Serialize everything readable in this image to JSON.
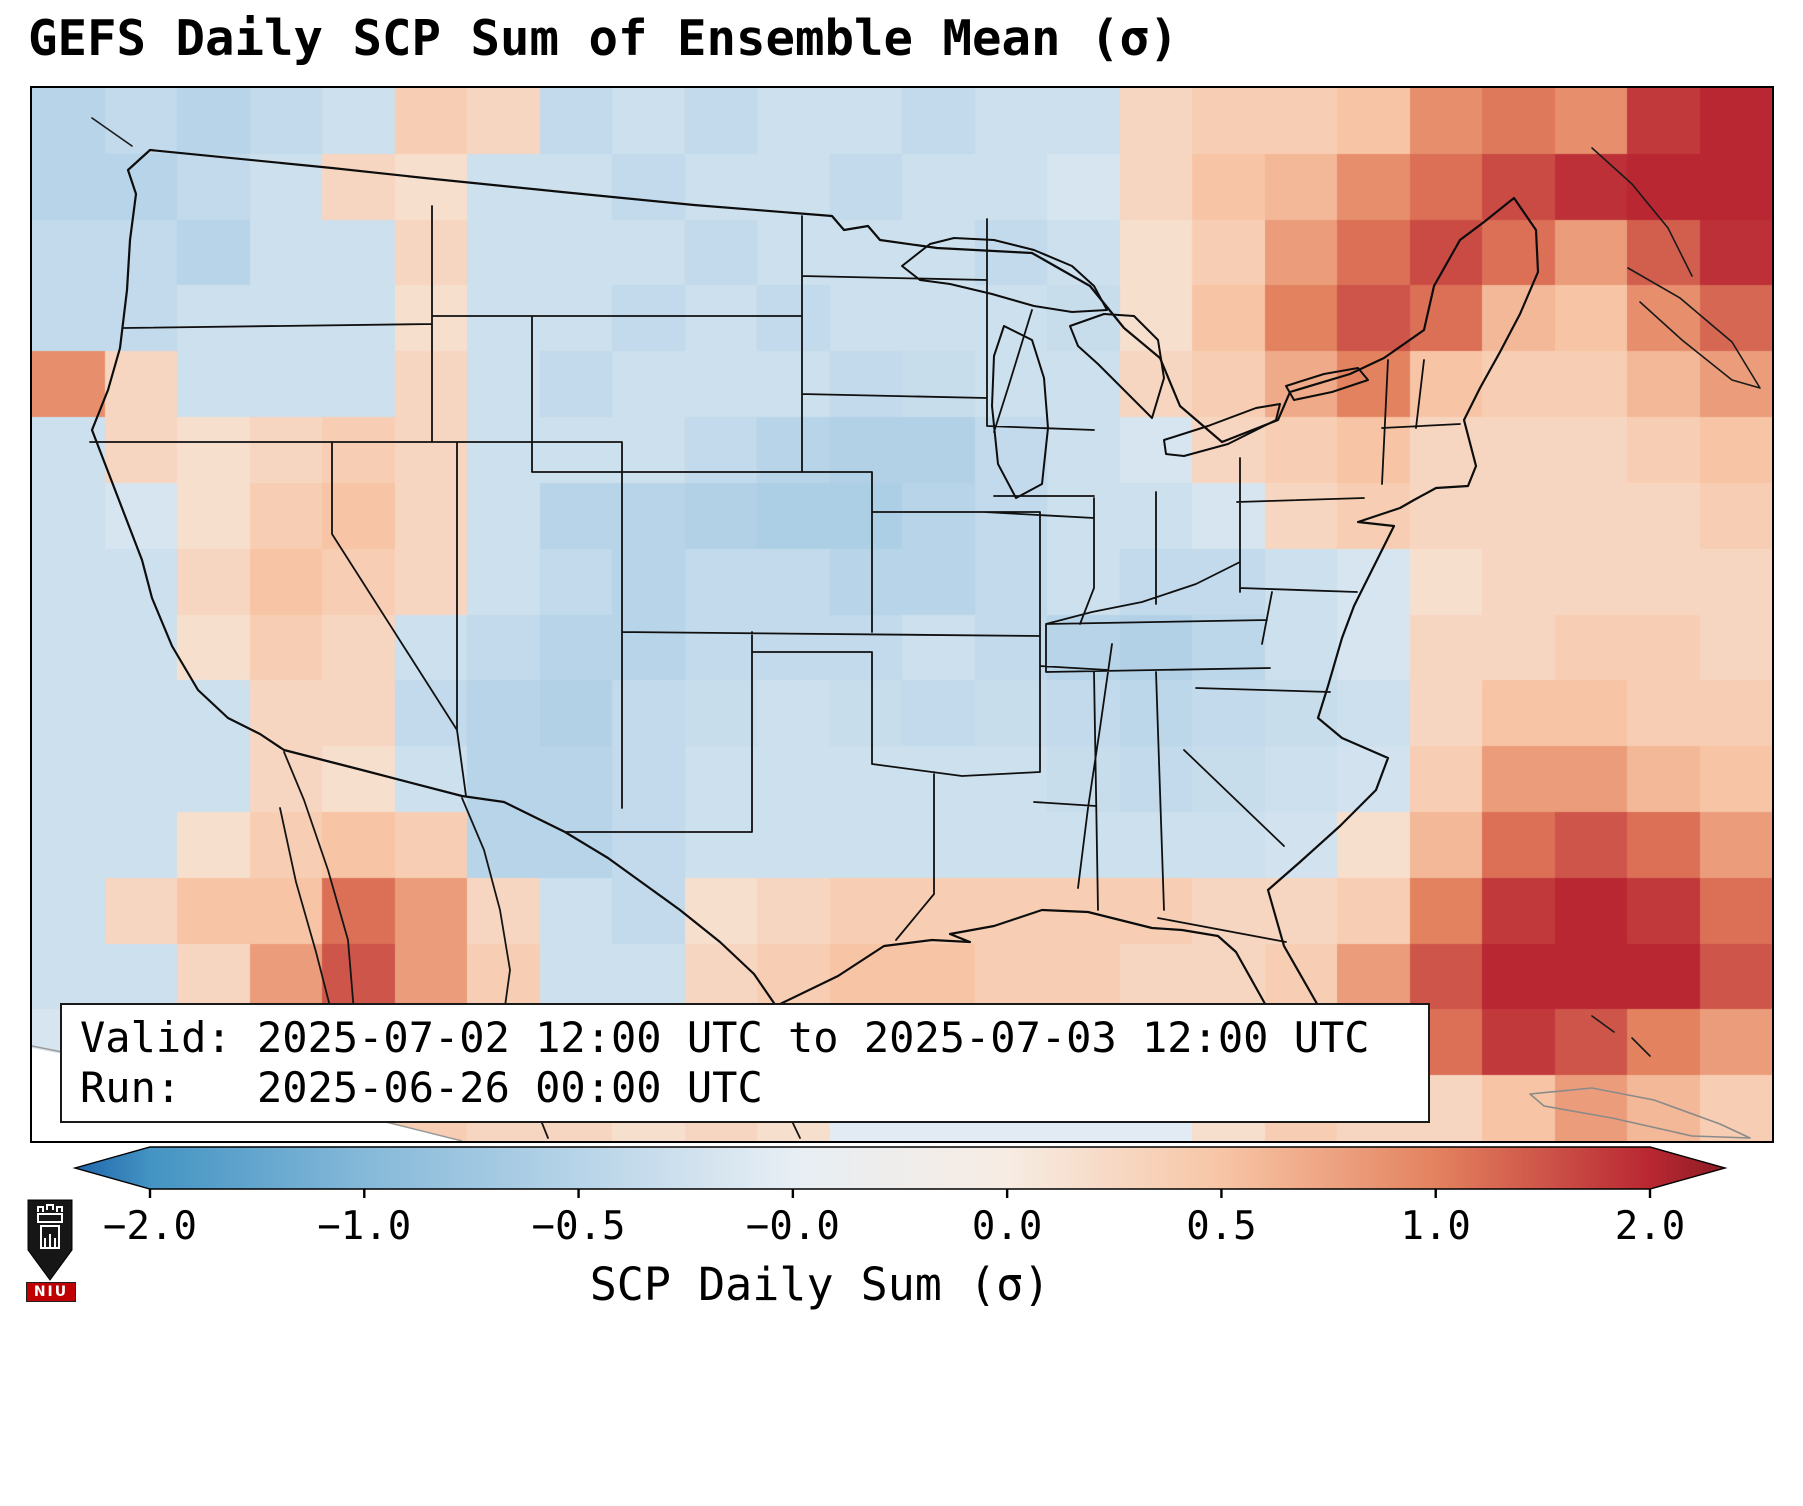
{
  "title": "GEFS Daily SCP Sum of Ensemble Mean (σ)",
  "info_box": {
    "valid_line": "Valid: 2025-07-02 12:00 UTC to 2025-07-03 12:00 UTC",
    "run_line": "Run:   2025-06-26 00:00 UTC"
  },
  "colorbar": {
    "label": "SCP Daily Sum (σ)",
    "ticks": [
      "−2.0",
      "−1.0",
      "−0.5",
      "−0.0",
      "0.0",
      "0.5",
      "1.0",
      "2.0"
    ],
    "left_tip_color": "#2166ac",
    "right_tip_color": "#8c1c23",
    "gradient": [
      {
        "p": 0.0,
        "c": "#2166ac"
      },
      {
        "p": 0.0455,
        "c": "#4393c3"
      },
      {
        "p": 0.1753,
        "c": "#85b9d9"
      },
      {
        "p": 0.3052,
        "c": "#b7d4e8"
      },
      {
        "p": 0.4351,
        "c": "#e7eef4"
      },
      {
        "p": 0.5649,
        "c": "#f7ece3"
      },
      {
        "p": 0.6948,
        "c": "#f7c5a5"
      },
      {
        "p": 0.8247,
        "c": "#e3825f"
      },
      {
        "p": 0.9545,
        "c": "#b92732"
      },
      {
        "p": 1.0,
        "c": "#8c1c23"
      }
    ]
  },
  "logo": {
    "text": "NIU"
  },
  "chart_data": {
    "type": "heatmap",
    "title": "GEFS Daily SCP Sum of Ensemble Mean (σ)",
    "colorbar_label": "SCP Daily Sum (σ)",
    "value_range": [
      -2,
      2
    ],
    "tick_labels": [
      "-2.0",
      "-1.0",
      "-0.5",
      "-0.0",
      "0.0",
      "0.5",
      "1.0",
      "2.0"
    ],
    "valid": "2025-07-02 12:00 UTC to 2025-07-03 12:00 UTC",
    "run": "2025-06-26 00:00 UTC",
    "region": "Continental United States with southern Canada, northern Mexico, Gulf of Mexico and western Atlantic",
    "legend_position": "bottom",
    "colormap": {
      "name": "RdBu_r (diverging blue-white-red, boundary ticks -2,-1,-0.5,-0,0,0.5,1,2)",
      "stops": [
        [
          -2.0,
          "#4393c3"
        ],
        [
          -1.0,
          "#85b9d9"
        ],
        [
          -0.5,
          "#b7d4e8"
        ],
        [
          -0.05,
          "#e7eef4"
        ],
        [
          0.05,
          "#f7ece3"
        ],
        [
          0.5,
          "#f7c5a5"
        ],
        [
          1.0,
          "#e3825f"
        ],
        [
          2.0,
          "#b92732"
        ]
      ]
    },
    "grid": {
      "cols": 24,
      "rows": 16,
      "orientation": "values[row][col]; row 0 = north edge of map, col 0 = west edge",
      "units": "sigma",
      "values": [
        [
          -0.5,
          -0.4,
          -0.5,
          -0.4,
          -0.3,
          0.4,
          0.3,
          -0.4,
          -0.3,
          -0.4,
          -0.3,
          -0.3,
          -0.4,
          -0.3,
          -0.3,
          0.3,
          0.4,
          0.4,
          0.5,
          0.9,
          1.1,
          0.9,
          1.8,
          2.0
        ],
        [
          -0.5,
          -0.5,
          -0.4,
          -0.3,
          0.3,
          0.2,
          -0.3,
          -0.3,
          -0.4,
          -0.3,
          -0.3,
          -0.4,
          -0.3,
          -0.3,
          -0.2,
          0.3,
          0.5,
          0.6,
          0.9,
          1.2,
          1.6,
          1.9,
          2.0,
          2.0
        ],
        [
          -0.4,
          -0.4,
          -0.5,
          -0.3,
          -0.3,
          0.3,
          -0.3,
          -0.3,
          -0.3,
          -0.4,
          -0.3,
          -0.3,
          -0.3,
          -0.4,
          -0.3,
          0.2,
          0.4,
          0.8,
          1.2,
          1.6,
          1.2,
          0.8,
          1.4,
          1.9
        ],
        [
          -0.4,
          -0.4,
          -0.3,
          -0.3,
          -0.3,
          0.2,
          -0.3,
          -0.3,
          -0.4,
          -0.3,
          -0.4,
          -0.3,
          -0.3,
          -0.3,
          -0.35,
          0.2,
          0.5,
          1.0,
          1.5,
          1.2,
          0.6,
          0.5,
          0.9,
          1.3
        ],
        [
          0.9,
          0.3,
          -0.3,
          -0.3,
          -0.3,
          0.3,
          -0.3,
          -0.4,
          -0.3,
          -0.3,
          -0.3,
          -0.4,
          -0.35,
          -0.3,
          -0.3,
          0.3,
          0.4,
          0.7,
          1.0,
          0.5,
          0.4,
          0.4,
          0.6,
          0.8
        ],
        [
          -0.3,
          0.3,
          0.2,
          0.3,
          0.4,
          0.3,
          -0.3,
          -0.3,
          -0.3,
          -0.4,
          -0.5,
          -0.55,
          -0.55,
          -0.4,
          -0.3,
          -0.2,
          0.3,
          0.4,
          0.5,
          0.3,
          0.3,
          0.3,
          0.4,
          0.5
        ],
        [
          -0.3,
          -0.2,
          0.2,
          0.4,
          0.5,
          0.3,
          -0.3,
          -0.5,
          -0.5,
          -0.55,
          -0.6,
          -0.6,
          -0.5,
          -0.4,
          -0.3,
          -0.3,
          -0.2,
          0.3,
          0.4,
          0.3,
          0.3,
          0.3,
          0.3,
          0.4
        ],
        [
          -0.3,
          -0.3,
          0.3,
          0.5,
          0.4,
          0.3,
          -0.3,
          -0.4,
          -0.5,
          -0.4,
          -0.4,
          -0.5,
          -0.5,
          -0.4,
          -0.3,
          -0.4,
          -0.4,
          -0.3,
          -0.2,
          0.2,
          0.3,
          0.3,
          0.3,
          0.3
        ],
        [
          -0.3,
          -0.3,
          0.2,
          0.4,
          0.3,
          -0.3,
          -0.4,
          -0.5,
          -0.5,
          -0.4,
          -0.4,
          -0.4,
          -0.3,
          -0.4,
          -0.5,
          -0.55,
          -0.45,
          -0.3,
          -0.2,
          0.3,
          0.3,
          0.4,
          0.4,
          0.3
        ],
        [
          -0.3,
          -0.3,
          -0.3,
          0.3,
          0.3,
          -0.4,
          -0.5,
          -0.55,
          -0.4,
          -0.35,
          -0.3,
          -0.35,
          -0.4,
          -0.35,
          -0.4,
          -0.45,
          -0.4,
          -0.35,
          -0.3,
          0.3,
          0.5,
          0.5,
          0.4,
          0.4
        ],
        [
          -0.3,
          -0.3,
          -0.3,
          0.3,
          0.2,
          -0.3,
          -0.5,
          -0.5,
          -0.4,
          -0.3,
          -0.3,
          -0.3,
          -0.3,
          -0.3,
          -0.35,
          -0.4,
          -0.35,
          -0.3,
          -0.25,
          0.4,
          0.8,
          0.8,
          0.6,
          0.5
        ],
        [
          -0.3,
          -0.3,
          0.2,
          0.4,
          0.5,
          0.4,
          -0.5,
          -0.5,
          -0.4,
          -0.3,
          -0.3,
          -0.3,
          -0.3,
          -0.3,
          -0.3,
          -0.3,
          -0.3,
          -0.25,
          0.2,
          0.6,
          1.2,
          1.5,
          1.2,
          0.8
        ],
        [
          -0.3,
          0.3,
          0.5,
          0.5,
          1.2,
          0.8,
          0.3,
          -0.3,
          -0.4,
          0.2,
          0.3,
          0.4,
          0.4,
          0.4,
          0.4,
          0.4,
          0.3,
          0.3,
          0.4,
          1.0,
          1.8,
          2.0,
          1.8,
          1.2
        ],
        [
          -0.3,
          -0.3,
          0.3,
          0.8,
          1.5,
          0.8,
          0.4,
          -0.3,
          -0.3,
          0.3,
          0.4,
          0.5,
          0.5,
          0.4,
          0.4,
          0.3,
          0.3,
          0.4,
          0.8,
          1.5,
          2.0,
          2.0,
          2.0,
          1.5
        ],
        [
          -0.2,
          -0.2,
          0.2,
          0.8,
          1.0,
          0.5,
          0.3,
          0.1,
          0.1,
          0.2,
          0.2,
          0.1,
          0.1,
          0.1,
          0.1,
          0.1,
          0.2,
          0.4,
          0.6,
          1.2,
          1.8,
          1.5,
          1.0,
          0.8
        ],
        [
          0.1,
          0.2,
          0.3,
          0.4,
          0.5,
          0.4,
          0.3,
          0.3,
          0.2,
          0.3,
          0.2,
          -0.1,
          -0.1,
          -0.1,
          -0.1,
          -0.1,
          0.2,
          0.4,
          0.3,
          0.3,
          0.5,
          0.8,
          0.6,
          0.4
        ]
      ]
    }
  }
}
